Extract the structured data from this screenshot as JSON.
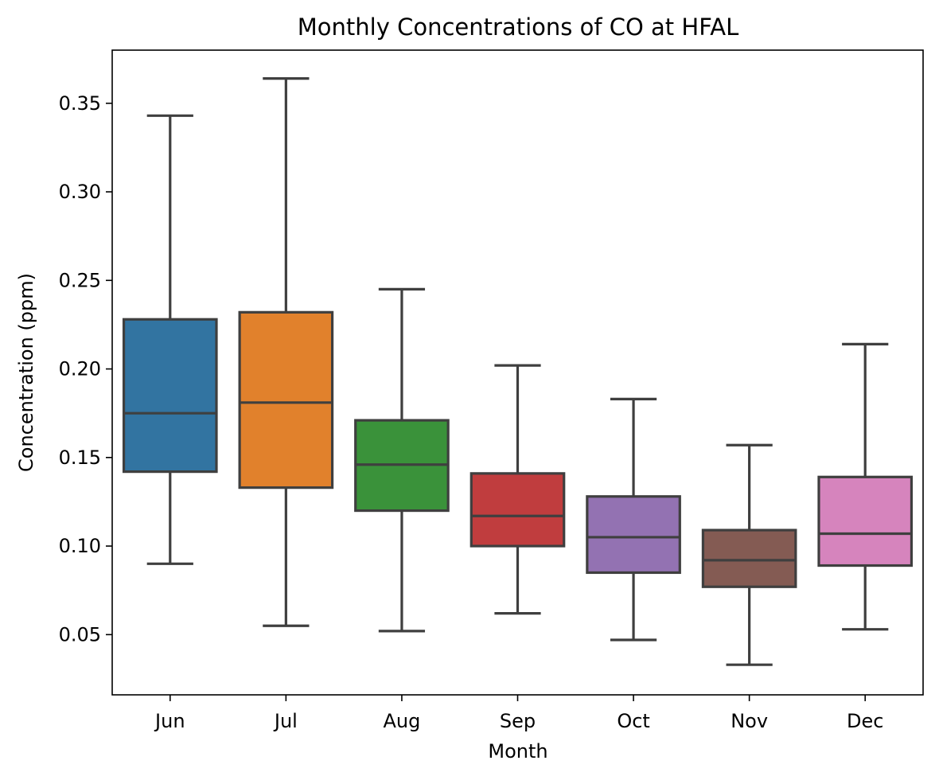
{
  "chart_data": {
    "type": "box",
    "title": "Monthly Concentrations of CO at HFAL",
    "xlabel": "Month",
    "ylabel": "Concentration (ppm)",
    "ylim": [
      0.016,
      0.38
    ],
    "yticks": [
      "0.05",
      "0.10",
      "0.15",
      "0.20",
      "0.25",
      "0.30",
      "0.35"
    ],
    "grid": false,
    "categories": [
      "Jun",
      "Jul",
      "Aug",
      "Sep",
      "Oct",
      "Nov",
      "Dec"
    ],
    "boxes": [
      {
        "category": "Jun",
        "whisker_low": 0.09,
        "q1": 0.142,
        "median": 0.175,
        "q3": 0.228,
        "whisker_high": 0.343,
        "color": "#3274a1"
      },
      {
        "category": "Jul",
        "whisker_low": 0.055,
        "q1": 0.133,
        "median": 0.181,
        "q3": 0.232,
        "whisker_high": 0.364,
        "color": "#e1812c"
      },
      {
        "category": "Aug",
        "whisker_low": 0.052,
        "q1": 0.12,
        "median": 0.146,
        "q3": 0.171,
        "whisker_high": 0.245,
        "color": "#3a923a"
      },
      {
        "category": "Sep",
        "whisker_low": 0.062,
        "q1": 0.1,
        "median": 0.117,
        "q3": 0.141,
        "whisker_high": 0.202,
        "color": "#c03d3e"
      },
      {
        "category": "Oct",
        "whisker_low": 0.047,
        "q1": 0.085,
        "median": 0.105,
        "q3": 0.128,
        "whisker_high": 0.183,
        "color": "#9372b2"
      },
      {
        "category": "Nov",
        "whisker_low": 0.033,
        "q1": 0.077,
        "median": 0.092,
        "q3": 0.109,
        "whisker_high": 0.157,
        "color": "#845b53"
      },
      {
        "category": "Dec",
        "whisker_low": 0.053,
        "q1": 0.089,
        "median": 0.107,
        "q3": 0.139,
        "whisker_high": 0.214,
        "color": "#d684bd"
      }
    ]
  }
}
